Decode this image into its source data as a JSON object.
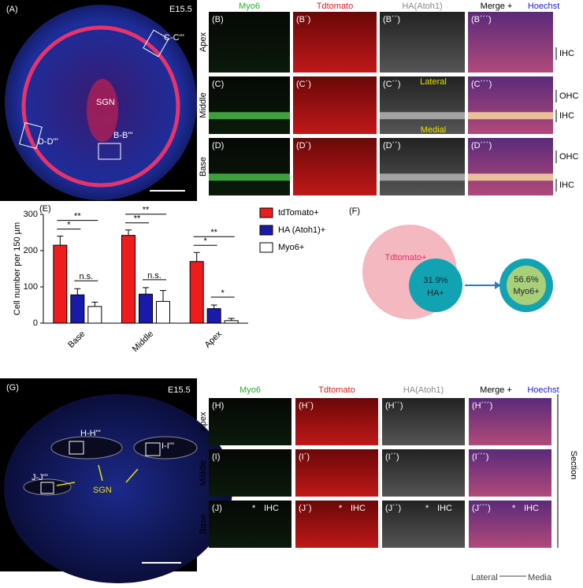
{
  "panel_a": {
    "letter": "(A)",
    "stage": "E15.5",
    "labels": [
      "C-C'''",
      "SGN",
      "D-D'''",
      "B-B'''"
    ]
  },
  "top_grid": {
    "headers": [
      "Myo6",
      "Tdtomato",
      "HA(Atoh1)",
      "Merge +",
      "Hoechst"
    ],
    "rows": [
      "Apex",
      "Middle",
      "Base"
    ],
    "cells": [
      [
        "(B)",
        "(B´)",
        "(B´´)",
        "(B´´´)"
      ],
      [
        "(C)",
        "(C´)",
        "(C´´)",
        "(C´´´)"
      ],
      [
        "(D)",
        "(D´)",
        "(D´´)",
        "(D´´´)"
      ]
    ],
    "side_labels": [
      "IHC",
      "OHC",
      "IHC",
      "OHC",
      "IHC"
    ],
    "inner_labels": [
      "Lateral",
      "Medial"
    ]
  },
  "chart_data": {
    "type": "bar",
    "letter": "(E)",
    "y_label": "Cell number per 150 µm",
    "categories": [
      "Base",
      "Middle",
      "Apex"
    ],
    "series": [
      {
        "name": "tdTomato+",
        "color": "#ee1c1c",
        "values": [
          215,
          242,
          170
        ],
        "errors": [
          25,
          15,
          25
        ]
      },
      {
        "name": "HA (Atoh1)+",
        "color": "#1a1aaa",
        "values": [
          78,
          80,
          40
        ],
        "errors": [
          17,
          18,
          10
        ]
      },
      {
        "name": "Myo6+",
        "color": "#ffffff",
        "values": [
          46,
          60,
          7
        ],
        "errors": [
          12,
          30,
          6
        ]
      }
    ],
    "ylim": [
      0,
      300
    ],
    "yticks": [
      0,
      100,
      200,
      300
    ],
    "significance": [
      [
        "**",
        "*",
        "n.s."
      ],
      [
        "**",
        "**",
        "n.s."
      ],
      [
        "**",
        "*",
        "*"
      ]
    ]
  },
  "venn": {
    "letter": "(F)",
    "outer": "Tdtomato+",
    "inner_pct": "31.9%",
    "inner": "HA+",
    "right_pct": "56.6%",
    "right": "Myo6+"
  },
  "panel_g": {
    "letter": "(G)",
    "stage": "E15.5",
    "labels": [
      "H-H'''",
      "I-I'''",
      "J-J'''",
      "SGN"
    ]
  },
  "bottom_grid": {
    "headers": [
      "Myo6",
      "Tdtomato",
      "HA(Atoh1)",
      "Merge +",
      "Hoechst"
    ],
    "rows": [
      "Apex",
      "Middle",
      "Base"
    ],
    "cells": [
      [
        "(H)",
        "(H´)",
        "(H´´)",
        "(H´´´)"
      ],
      [
        "(I)",
        "(I´)",
        "(I´´)",
        "(I´´´)"
      ],
      [
        "(J)",
        "(J´)",
        "(J´´)",
        "(J´´´)"
      ]
    ],
    "ihc": "IHC",
    "asterisk": "*",
    "section": "Section",
    "lateral": "Lateral",
    "medial": "Media"
  }
}
